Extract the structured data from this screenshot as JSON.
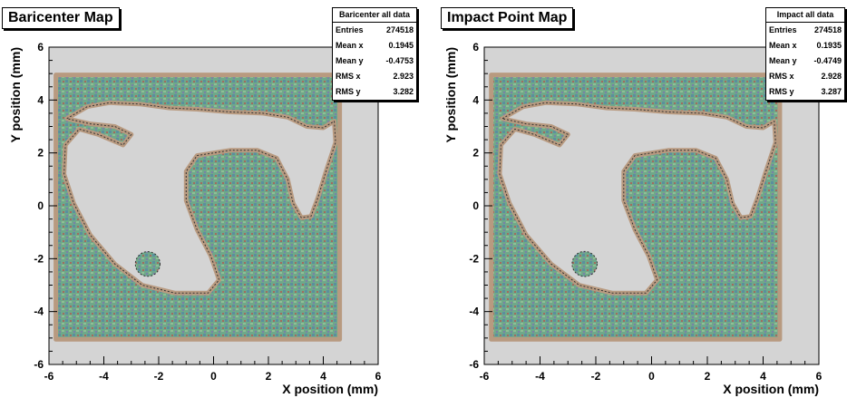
{
  "chart_data": [
    {
      "type": "scatter",
      "title": "Baricenter Map",
      "xlabel": "X position (mm)",
      "ylabel": "Y position (mm)",
      "xlim": [
        -6,
        6
      ],
      "ylim": [
        -6,
        6
      ],
      "x_ticks": [
        "-6",
        "-4",
        "-2",
        "0",
        "2",
        "4",
        "6"
      ],
      "y_ticks": [
        "-6",
        "-4",
        "-2",
        "0",
        "2",
        "4",
        "6"
      ],
      "frame_color": "#d4d4d4",
      "stats": {
        "title": "Baricenter all data",
        "rows": [
          {
            "label": "Entries",
            "value": "274518"
          },
          {
            "label": "Mean x",
            "value": "0.1945"
          },
          {
            "label": "Mean y",
            "value": "-0.4753"
          },
          {
            "label": "RMS x",
            "value": "2.923"
          },
          {
            "label": "RMS y",
            "value": "3.282"
          }
        ]
      }
    },
    {
      "type": "scatter",
      "title": "Impact Point Map",
      "xlabel": "X position (mm)",
      "ylabel": "Y position (mm)",
      "xlim": [
        -6,
        6
      ],
      "ylim": [
        -6,
        6
      ],
      "x_ticks": [
        "-6",
        "-4",
        "-2",
        "0",
        "2",
        "4",
        "6"
      ],
      "y_ticks": [
        "-6",
        "-4",
        "-2",
        "0",
        "2",
        "4",
        "6"
      ],
      "frame_color": "#d4d4d4",
      "stats": {
        "title": "Impact all data",
        "rows": [
          {
            "label": "Entries",
            "value": "274518"
          },
          {
            "label": "Mean x",
            "value": "0.1935"
          },
          {
            "label": "Mean y",
            "value": "-0.4749"
          },
          {
            "label": "RMS x",
            "value": "2.928"
          },
          {
            "label": "RMS y",
            "value": "3.287"
          }
        ]
      }
    }
  ]
}
